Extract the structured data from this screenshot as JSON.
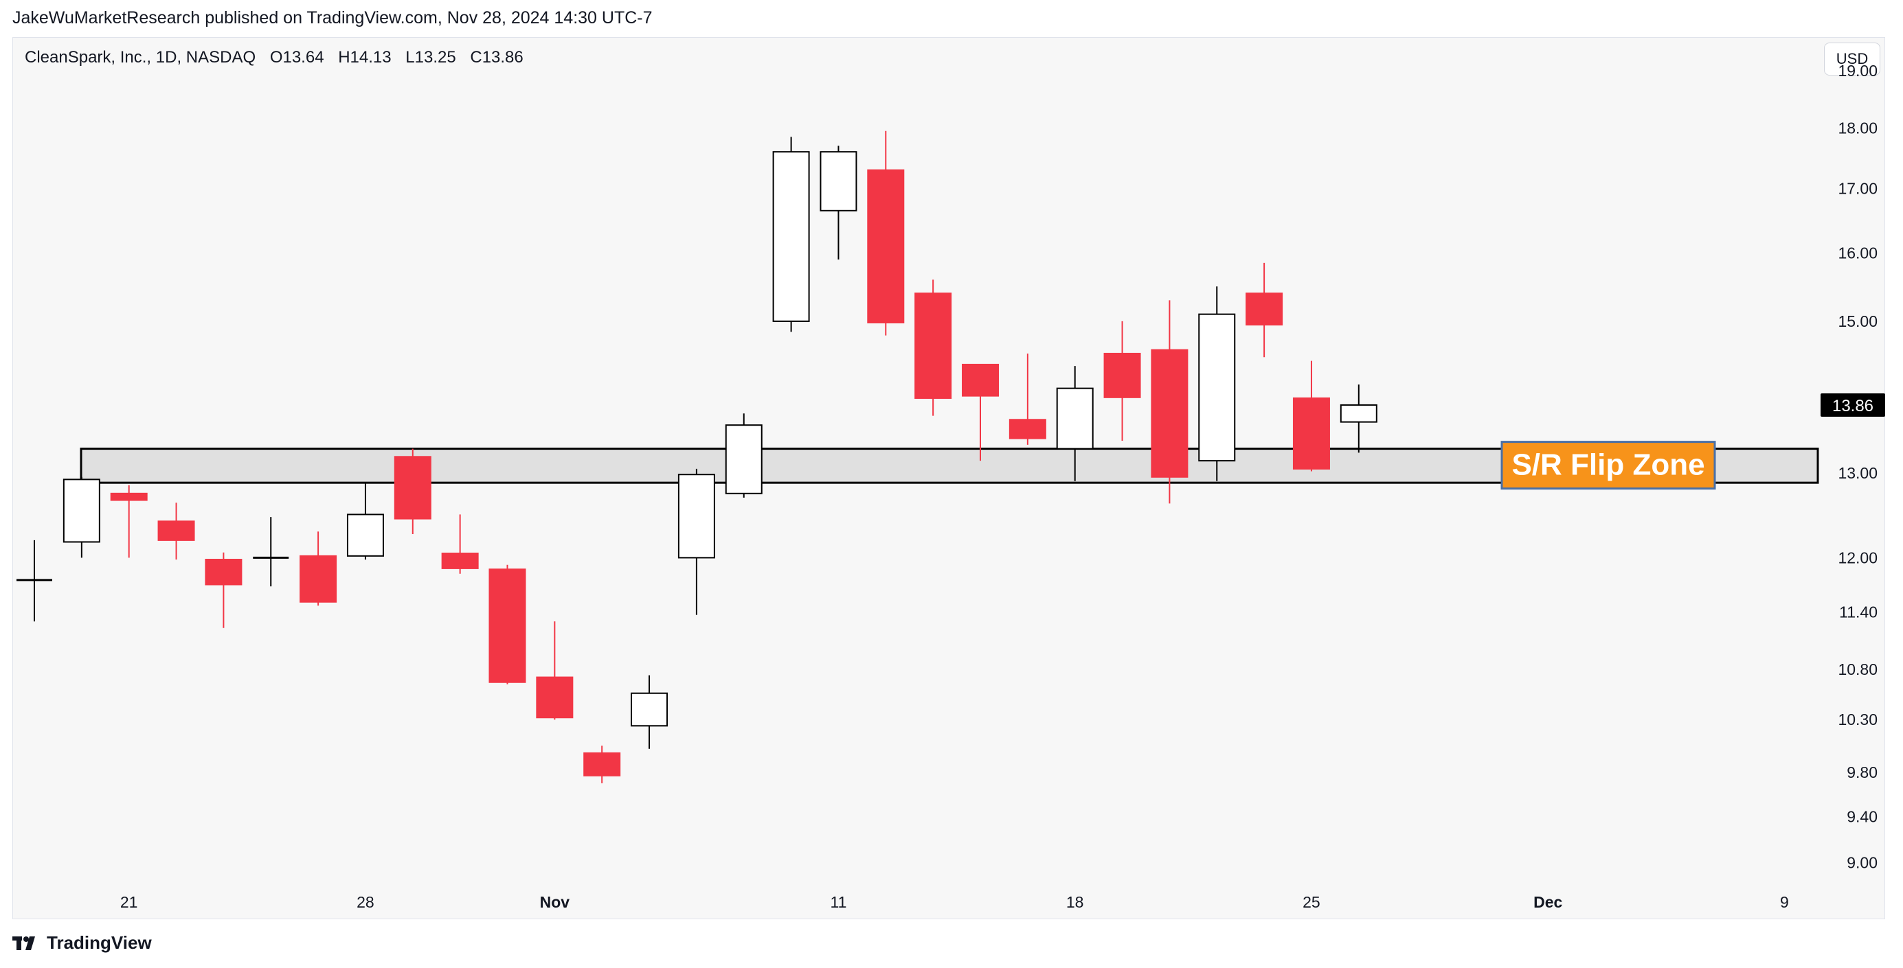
{
  "publisher_line": "JakeWuMarketResearch published on TradingView.com, Nov 28, 2024 14:30 UTC-7",
  "legend": {
    "symbol": "CleanSpark, Inc., 1D, NASDAQ",
    "open": "O13.64",
    "high": "H14.13",
    "low": "L13.25",
    "close": "C13.86"
  },
  "currency_label": "USD",
  "last_price_label": "13.86",
  "zone_label": "S/R Flip Zone",
  "brand": "TradingView",
  "colors": {
    "down": "#f23645",
    "up_fill": "#ffffff",
    "up_border": "#000000",
    "zone_fill": "#e0e0e0",
    "zone_label_bg": "#f7931a",
    "background": "#f7f7f7"
  },
  "chart_data": {
    "type": "candlestick",
    "y_scale": "log",
    "ylim": [
      8.75,
      19.6
    ],
    "y_ticks": [
      19.0,
      18.0,
      17.0,
      16.0,
      15.0,
      13.0,
      12.0,
      11.4,
      10.8,
      10.3,
      9.8,
      9.4,
      9.0
    ],
    "y_tick_labels": [
      "19.00",
      "18.00",
      "17.00",
      "16.00",
      "15.00",
      "13.00",
      "12.00",
      "11.40",
      "10.80",
      "10.30",
      "9.80",
      "9.40",
      "9.00"
    ],
    "x_ticks": [
      {
        "label": "21",
        "date": "2024-10-21",
        "bold": false
      },
      {
        "label": "28",
        "date": "2024-10-28",
        "bold": false
      },
      {
        "label": "Nov",
        "date": "2024-11-01",
        "bold": true
      },
      {
        "label": "11",
        "date": "2024-11-11",
        "bold": false
      },
      {
        "label": "18",
        "date": "2024-11-18",
        "bold": false
      },
      {
        "label": "25",
        "date": "2024-11-25",
        "bold": false
      },
      {
        "label": "Dec",
        "date": "2024-12-02",
        "bold": true
      },
      {
        "label": "9",
        "date": "2024-12-09",
        "bold": false
      }
    ],
    "candles": [
      {
        "date": "2024-10-17",
        "open": 11.75,
        "high": 12.2,
        "low": 11.3,
        "close": 11.75
      },
      {
        "date": "2024-10-18",
        "open": 12.18,
        "high": 12.95,
        "low": 12.0,
        "close": 12.92
      },
      {
        "date": "2024-10-21",
        "open": 12.75,
        "high": 12.85,
        "low": 12.0,
        "close": 12.67
      },
      {
        "date": "2024-10-22",
        "open": 12.42,
        "high": 12.64,
        "low": 11.98,
        "close": 12.2
      },
      {
        "date": "2024-10-23",
        "open": 11.98,
        "high": 12.06,
        "low": 11.23,
        "close": 11.7
      },
      {
        "date": "2024-10-24",
        "open": 12.0,
        "high": 12.47,
        "low": 11.68,
        "close": 12.0
      },
      {
        "date": "2024-10-25",
        "open": 12.02,
        "high": 12.3,
        "low": 11.47,
        "close": 11.51
      },
      {
        "date": "2024-10-28",
        "open": 12.02,
        "high": 12.88,
        "low": 11.98,
        "close": 12.5
      },
      {
        "date": "2024-10-29",
        "open": 13.2,
        "high": 13.3,
        "low": 12.27,
        "close": 12.45
      },
      {
        "date": "2024-10-30",
        "open": 12.05,
        "high": 12.5,
        "low": 11.82,
        "close": 11.88
      },
      {
        "date": "2024-10-31",
        "open": 11.87,
        "high": 11.92,
        "low": 10.65,
        "close": 10.67
      },
      {
        "date": "2024-11-01",
        "open": 10.72,
        "high": 11.3,
        "low": 10.3,
        "close": 10.32
      },
      {
        "date": "2024-11-04",
        "open": 9.98,
        "high": 10.05,
        "low": 9.7,
        "close": 9.77
      },
      {
        "date": "2024-11-05",
        "open": 10.24,
        "high": 10.74,
        "low": 10.02,
        "close": 10.56
      },
      {
        "date": "2024-11-06",
        "open": 12.0,
        "high": 13.05,
        "low": 11.37,
        "close": 12.98
      },
      {
        "date": "2024-11-07",
        "open": 12.75,
        "high": 13.75,
        "low": 12.7,
        "close": 13.6
      },
      {
        "date": "2024-11-08",
        "open": 15.0,
        "high": 17.85,
        "low": 14.85,
        "close": 17.6
      },
      {
        "date": "2024-11-11",
        "open": 16.65,
        "high": 17.7,
        "low": 15.9,
        "close": 17.6
      },
      {
        "date": "2024-11-12",
        "open": 17.3,
        "high": 17.95,
        "low": 14.8,
        "close": 14.98
      },
      {
        "date": "2024-11-13",
        "open": 15.4,
        "high": 15.6,
        "low": 13.72,
        "close": 13.95
      },
      {
        "date": "2024-11-14",
        "open": 14.4,
        "high": 14.4,
        "low": 13.15,
        "close": 13.98
      },
      {
        "date": "2024-11-15",
        "open": 13.67,
        "high": 14.55,
        "low": 13.35,
        "close": 13.43
      },
      {
        "date": "2024-11-18",
        "open": 13.3,
        "high": 14.38,
        "low": 12.9,
        "close": 14.08
      },
      {
        "date": "2024-11-19",
        "open": 14.55,
        "high": 15.0,
        "low": 13.4,
        "close": 13.96
      },
      {
        "date": "2024-11-20",
        "open": 14.6,
        "high": 15.3,
        "low": 12.63,
        "close": 12.95
      },
      {
        "date": "2024-11-21",
        "open": 13.15,
        "high": 15.5,
        "low": 12.9,
        "close": 15.1
      },
      {
        "date": "2024-11-22",
        "open": 15.4,
        "high": 15.85,
        "low": 14.5,
        "close": 14.95
      },
      {
        "date": "2024-11-25",
        "open": 13.95,
        "high": 14.45,
        "low": 13.02,
        "close": 13.05
      },
      {
        "date": "2024-11-26",
        "open": 13.64,
        "high": 14.13,
        "low": 13.25,
        "close": 13.86
      }
    ],
    "annotation_zone": {
      "label": "S/R Flip Zone",
      "top": 13.3,
      "bottom": 12.88
    }
  }
}
